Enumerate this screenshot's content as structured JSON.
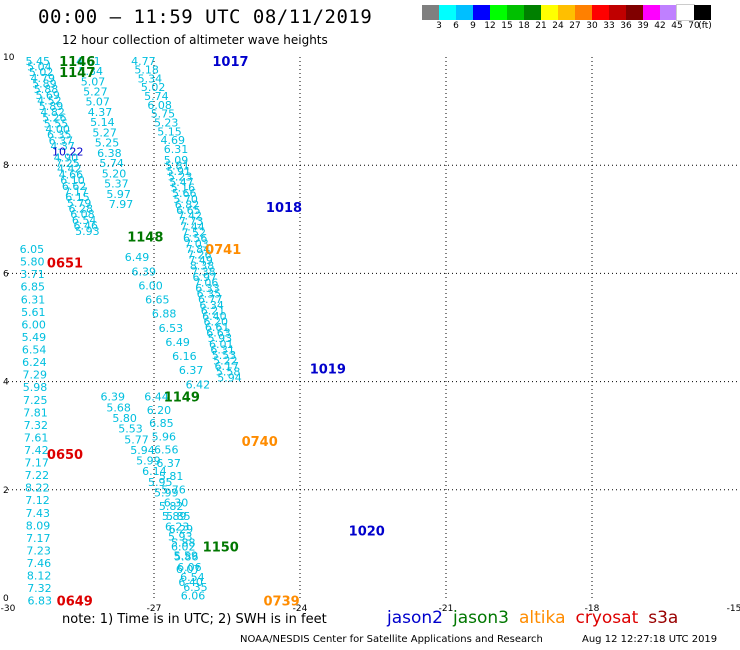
{
  "header": {
    "title": "00:00 – 11:59 UTC 08/11/2019",
    "subtitle": "12 hour collection of altimeter wave heights"
  },
  "colorbar": {
    "colors": [
      "#7f7f7f",
      "#00ffff",
      "#00bfff",
      "#0000ff",
      "#00ff00",
      "#00c000",
      "#008000",
      "#ffff00",
      "#ffbf00",
      "#ff8000",
      "#ff0000",
      "#c00000",
      "#800000",
      "#ff00ff",
      "#bf80ff",
      "#ffffff",
      "#000000"
    ],
    "labels": [
      "3",
      "6",
      "9",
      "12",
      "15",
      "18",
      "21",
      "24",
      "27",
      "30",
      "33",
      "36",
      "39",
      "42",
      "45",
      "70",
      "(ft)"
    ]
  },
  "axes": {
    "x_ticks": [
      "-30",
      "-27",
      "-24",
      "-21",
      "-18",
      "-15"
    ],
    "y_ticks": [
      "0",
      "2",
      "4",
      "6",
      "8",
      "10"
    ]
  },
  "colors": {
    "jason2": "#0000cc",
    "jason3": "#007700",
    "altika": "#ff8c00",
    "cryosat": "#dd0000",
    "s3a": "#990000",
    "wave": "#00bfdf",
    "wave_dark": "#0000cc"
  },
  "chart_data": {
    "type": "scatter",
    "xlabel": "",
    "ylabel": "",
    "xlim": [
      -30,
      -15
    ],
    "ylim": [
      0,
      10
    ],
    "grid": true,
    "wave_height_unit": "ft",
    "time_labels": [
      {
        "text": "1146",
        "mission": "jason3",
        "x": -28.95,
        "y": 9.93
      },
      {
        "text": "1147",
        "mission": "jason3",
        "x": -28.95,
        "y": 9.72
      },
      {
        "text": "1017",
        "mission": "jason2",
        "x": -25.8,
        "y": 9.93
      },
      {
        "text": "1018",
        "mission": "jason2",
        "x": -24.7,
        "y": 7.23
      },
      {
        "text": "1148",
        "mission": "jason3",
        "x": -27.55,
        "y": 6.68
      },
      {
        "text": "0741",
        "mission": "altika",
        "x": -25.95,
        "y": 6.45
      },
      {
        "text": "0651",
        "mission": "cryosat",
        "x": -29.2,
        "y": 6.2
      },
      {
        "text": "1019",
        "mission": "jason2",
        "x": -23.8,
        "y": 4.24
      },
      {
        "text": "1149",
        "mission": "jason3",
        "x": -26.8,
        "y": 3.72
      },
      {
        "text": "0740",
        "mission": "altika",
        "x": -25.2,
        "y": 2.9
      },
      {
        "text": "0650",
        "mission": "cryosat",
        "x": -29.2,
        "y": 2.66
      },
      {
        "text": "1020",
        "mission": "jason2",
        "x": -23.0,
        "y": 1.25
      },
      {
        "text": "1150",
        "mission": "jason3",
        "x": -26.0,
        "y": 0.95
      },
      {
        "text": "0739",
        "mission": "altika",
        "x": -24.75,
        "y": -0.05
      },
      {
        "text": "0649",
        "mission": "cryosat",
        "x": -29.0,
        "y": -0.05
      }
    ],
    "tracks": [
      {
        "name": "track-1",
        "x_start": -29.64,
        "x_end": -28.62,
        "y_start": 9.93,
        "y_end": 6.78,
        "values": [
          "5.45",
          "5.04",
          "5.02",
          "4.79",
          "5.89",
          "5.88",
          "5.69",
          "4.52",
          "5.89",
          "4.82",
          "5.26",
          "5.55",
          "4.00",
          "6.35",
          "6.37",
          "4.37",
          "10.22",
          "4.90",
          "7.25",
          "4.42",
          "4.66",
          "6.10",
          "6.62",
          "7.17",
          "6.15",
          "5.79",
          "6.28",
          "6.08",
          "6.54",
          "6.46",
          "5.93"
        ]
      },
      {
        "name": "track-2",
        "x_start": -28.6,
        "x_end": -27.93,
        "y_start": 9.93,
        "y_end": 7.28,
        "values": [
          "4.61",
          "5.34",
          "5.07",
          "5.27",
          "5.07",
          "4.37",
          "5.14",
          "5.27",
          "5.25",
          "6.38",
          "5.74",
          "5.20",
          "5.37",
          "5.97",
          "7.97"
        ]
      },
      {
        "name": "track-3",
        "x_start": -27.47,
        "x_end": -26.8,
        "y_start": 9.93,
        "y_end": 8.3,
        "values": [
          "4.77",
          "5.18",
          "5.34",
          "5.02",
          "5.74",
          "6.08",
          "5.75",
          "5.23",
          "5.15",
          "4.69",
          "6.31"
        ]
      },
      {
        "name": "track-4",
        "x_start": -26.8,
        "x_end": -25.7,
        "y_start": 8.1,
        "y_end": 4.08,
        "values": [
          "5.09",
          "5.81",
          "5.91",
          "5.23",
          "5.47",
          "5.16",
          "5.66",
          "5.70",
          "6.82",
          "6.65",
          "7.42",
          "7.73",
          "7.44",
          "7.52",
          "6.56",
          "7.03",
          "7.84",
          "7.26",
          "7.49",
          "8.38",
          "7.38",
          "6.97",
          "7.06",
          "6.33",
          "6.35",
          "6.77",
          "6.34",
          "6.21",
          "6.40",
          "6.20",
          "6.61",
          "6.63",
          "5.93",
          "6.01",
          "6.31",
          "5.53",
          "5.22",
          "6.17",
          "5.58",
          "5.94"
        ]
      },
      {
        "name": "track-5",
        "x_start": -29.76,
        "x_end": -29.6,
        "y_start": 6.45,
        "y_end": -0.05,
        "values": [
          "6.05",
          "5.80",
          "3.71",
          "6.85",
          "6.31",
          "5.61",
          "6.00",
          "5.49",
          "6.54",
          "6.24",
          "7.29",
          "5.98",
          "7.25",
          "7.81",
          "7.32",
          "7.61",
          "7.42",
          "7.17",
          "7.22",
          "8.22",
          "7.12",
          "7.43",
          "8.09",
          "7.17",
          "7.23",
          "7.46",
          "8.12",
          "7.32",
          "6.83"
        ]
      },
      {
        "name": "track-6",
        "x_start": -28.1,
        "x_end": -27.0,
        "y_start": 3.72,
        "y_end": 1.95,
        "values": [
          "6.39",
          "5.68",
          "5.80",
          "5.53",
          "5.77",
          "5.94",
          "5.99",
          "6.14",
          "5.95",
          "5.99"
        ]
      },
      {
        "name": "track-7",
        "x_start": -27.6,
        "x_end": -26.35,
        "y_start": 6.3,
        "y_end": 3.95,
        "values": [
          "6.49",
          "6.39",
          "6.00",
          "6.65",
          "6.88",
          "6.53",
          "6.49",
          "6.16",
          "6.37",
          "6.42"
        ]
      },
      {
        "name": "track-8",
        "x_start": -27.2,
        "x_end": -26.45,
        "y_start": 3.72,
        "y_end": 0.05,
        "values": [
          "6.44",
          "6.20",
          "6.85",
          "5.96",
          "6.56",
          "6.37",
          "5.81",
          "5.76",
          "6.30",
          "5.85",
          "6.29",
          "5.88",
          "5.59",
          "6.07",
          "6.40",
          "6.06"
        ]
      },
      {
        "name": "track-9",
        "x_start": -26.9,
        "x_end": -26.4,
        "y_start": 1.7,
        "y_end": 0.2,
        "values": [
          "5.82",
          "5.89",
          "6.23",
          "5.93",
          "6.02",
          "5.86",
          "6.06",
          "6.54",
          "6.35"
        ]
      }
    ]
  },
  "footer": {
    "note": "note: 1) Time is in UTC; 2) SWH is in feet",
    "legend": [
      {
        "label": "jason2",
        "color": "#0000cc"
      },
      {
        "label": "jason3",
        "color": "#007700"
      },
      {
        "label": "altika",
        "color": "#ff8c00"
      },
      {
        "label": "cryosat",
        "color": "#dd0000"
      },
      {
        "label": "s3a",
        "color": "#990000"
      }
    ],
    "credit": "NOAA/NESDIS Center for Satellite Applications and Research",
    "timestamp": "Aug 12 12:27:18 UTC 2019"
  }
}
